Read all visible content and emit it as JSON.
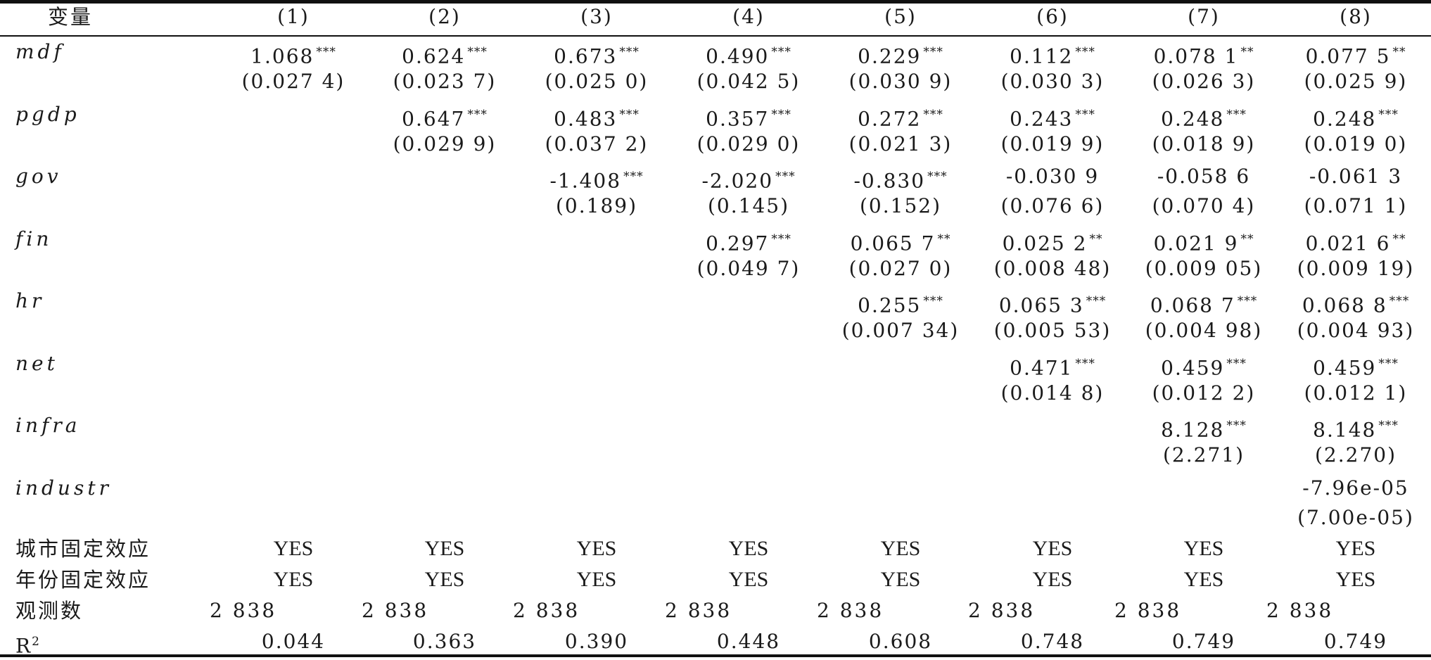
{
  "header": {
    "variable_label": "变量",
    "columns": [
      "(1)",
      "(2)",
      "(3)",
      "(4)",
      "(5)",
      "(6)",
      "(7)",
      "(8)"
    ]
  },
  "rows": [
    {
      "name": "mdf",
      "coef": [
        "1.068",
        "0.624",
        "0.673",
        "0.490",
        "0.229",
        "0.112",
        "0.078 1",
        "0.077 5"
      ],
      "stars": [
        "***",
        "***",
        "***",
        "***",
        "***",
        "***",
        "**",
        "**"
      ],
      "se": [
        "(0.027 4)",
        "(0.023 7)",
        "(0.025 0)",
        "(0.042 5)",
        "(0.030 9)",
        "(0.030 3)",
        "(0.026 3)",
        "(0.025 9)"
      ]
    },
    {
      "name": "pgdp",
      "coef": [
        "",
        "0.647",
        "0.483",
        "0.357",
        "0.272",
        "0.243",
        "0.248",
        "0.248"
      ],
      "stars": [
        "",
        "***",
        "***",
        "***",
        "***",
        "***",
        "***",
        "***"
      ],
      "se": [
        "",
        "(0.029 9)",
        "(0.037 2)",
        "(0.029 0)",
        "(0.021 3)",
        "(0.019 9)",
        "(0.018 9)",
        "(0.019 0)"
      ]
    },
    {
      "name": "gov",
      "coef": [
        "",
        "",
        "-1.408",
        "-2.020",
        "-0.830",
        "-0.030 9",
        "-0.058 6",
        "-0.061 3"
      ],
      "stars": [
        "",
        "",
        "***",
        "***",
        "***",
        "",
        "",
        ""
      ],
      "se": [
        "",
        "",
        "(0.189)",
        "(0.145)",
        "(0.152)",
        "(0.076 6)",
        "(0.070 4)",
        "(0.071 1)"
      ]
    },
    {
      "name": "fin",
      "coef": [
        "",
        "",
        "",
        "0.297",
        "0.065 7",
        "0.025 2",
        "0.021 9",
        "0.021 6"
      ],
      "stars": [
        "",
        "",
        "",
        "***",
        "**",
        "**",
        "**",
        "**"
      ],
      "se": [
        "",
        "",
        "",
        "(0.049 7)",
        "(0.027 0)",
        "(0.008 48)",
        "(0.009 05)",
        "(0.009 19)"
      ]
    },
    {
      "name": "hr",
      "coef": [
        "",
        "",
        "",
        "",
        "0.255",
        "0.065 3",
        "0.068 7",
        "0.068 8"
      ],
      "stars": [
        "",
        "",
        "",
        "",
        "***",
        "***",
        "***",
        "***"
      ],
      "se": [
        "",
        "",
        "",
        "",
        "(0.007 34)",
        "(0.005 53)",
        "(0.004 98)",
        "(0.004 93)"
      ]
    },
    {
      "name": "net",
      "coef": [
        "",
        "",
        "",
        "",
        "",
        "0.471",
        "0.459",
        "0.459"
      ],
      "stars": [
        "",
        "",
        "",
        "",
        "",
        "***",
        "***",
        "***"
      ],
      "se": [
        "",
        "",
        "",
        "",
        "",
        "(0.014 8)",
        "(0.012 2)",
        "(0.012 1)"
      ]
    },
    {
      "name": "infra",
      "coef": [
        "",
        "",
        "",
        "",
        "",
        "",
        "8.128",
        "8.148"
      ],
      "stars": [
        "",
        "",
        "",
        "",
        "",
        "",
        "***",
        "***"
      ],
      "se": [
        "",
        "",
        "",
        "",
        "",
        "",
        "(2.271)",
        "(2.270)"
      ]
    },
    {
      "name": "industr",
      "coef": [
        "",
        "",
        "",
        "",
        "",
        "",
        "",
        "-7.96e-05"
      ],
      "stars": [
        "",
        "",
        "",
        "",
        "",
        "",
        "",
        ""
      ],
      "se": [
        "",
        "",
        "",
        "",
        "",
        "",
        "",
        "(7.00e-05)"
      ]
    }
  ],
  "footer": {
    "city_fe": {
      "label": "城市固定效应",
      "values": [
        "YES",
        "YES",
        "YES",
        "YES",
        "YES",
        "YES",
        "YES",
        "YES"
      ]
    },
    "year_fe": {
      "label": "年份固定效应",
      "values": [
        "YES",
        "YES",
        "YES",
        "YES",
        "YES",
        "YES",
        "YES",
        "YES"
      ]
    },
    "obs": {
      "label": "观测数",
      "values": [
        "2 838",
        "2 838",
        "2 838",
        "2 838",
        "2 838",
        "2 838",
        "2 838",
        "2 838"
      ]
    },
    "r2": {
      "label": "R",
      "label_sup": "2",
      "values": [
        "0.044",
        "0.363",
        "0.390",
        "0.448",
        "0.608",
        "0.748",
        "0.749",
        "0.749"
      ]
    }
  }
}
